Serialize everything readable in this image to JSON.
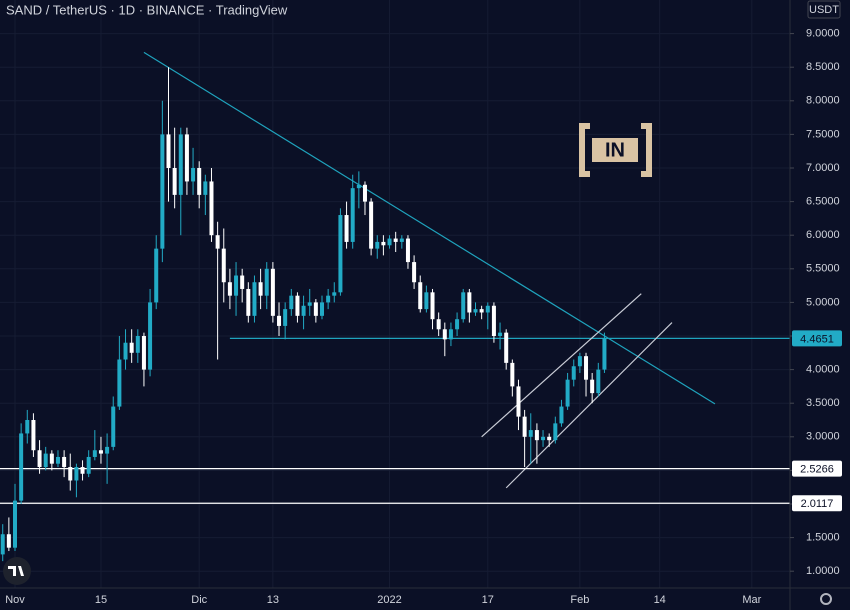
{
  "chart_data": {
    "type": "candlestick",
    "title": "SAND / TetherUS · 1D · BINANCE · TradingView",
    "currency": "USDT",
    "watermark": "IN",
    "up_color": "#22abc6",
    "down_color": "#ffffff",
    "x": [
      "10-30",
      "10-31",
      "11-01",
      "11-02",
      "11-03",
      "11-04",
      "11-05",
      "11-06",
      "11-07",
      "11-08",
      "11-09",
      "11-10",
      "11-11",
      "11-12",
      "11-13",
      "11-14",
      "11-15",
      "11-16",
      "11-17",
      "11-18",
      "11-19",
      "11-20",
      "11-21",
      "11-22",
      "11-23",
      "11-24",
      "11-25",
      "11-26",
      "11-27",
      "11-28",
      "11-29",
      "11-30",
      "12-01",
      "12-02",
      "12-03",
      "12-04",
      "12-05",
      "12-06",
      "12-07",
      "12-08",
      "12-09",
      "12-10",
      "12-11",
      "12-12",
      "12-13",
      "12-14",
      "12-15",
      "12-16",
      "12-17",
      "12-18",
      "12-19",
      "12-20",
      "12-21",
      "12-22",
      "12-23",
      "12-24",
      "12-25",
      "12-26",
      "12-27",
      "12-28",
      "12-29",
      "12-30",
      "12-31",
      "01-01",
      "01-02",
      "01-03",
      "01-04",
      "01-05",
      "01-06",
      "01-07",
      "01-08",
      "01-09",
      "01-10",
      "01-11",
      "01-12",
      "01-13",
      "01-14",
      "01-15",
      "01-16",
      "01-17",
      "01-18",
      "01-19",
      "01-20",
      "01-21",
      "01-22",
      "01-23",
      "01-24",
      "01-25",
      "01-26",
      "01-27",
      "01-28",
      "01-29",
      "01-30",
      "01-31",
      "02-01",
      "02-02",
      "02-03",
      "02-04",
      "02-05"
    ],
    "open": [
      1.25,
      1.55,
      1.35,
      2.05,
      3.05,
      3.25,
      2.8,
      2.55,
      2.75,
      2.6,
      2.7,
      2.55,
      2.35,
      2.55,
      2.45,
      2.7,
      2.8,
      2.75,
      2.85,
      3.45,
      4.15,
      4.4,
      4.25,
      4.5,
      4.0,
      5.0,
      5.8,
      7.5,
      7.0,
      6.6,
      7.5,
      6.8,
      7.0,
      6.6,
      6.8,
      6.0,
      5.8,
      5.3,
      5.1,
      5.4,
      5.2,
      4.8,
      5.3,
      5.1,
      5.5,
      4.8,
      4.65,
      4.9,
      5.1,
      4.8,
      4.95,
      5.0,
      4.8,
      5.0,
      5.1,
      5.15,
      6.3,
      5.9,
      6.7,
      6.75,
      6.5,
      5.8,
      5.9,
      5.85,
      5.95,
      5.9,
      5.95,
      5.6,
      5.3,
      4.9,
      5.15,
      4.75,
      4.6,
      4.45,
      4.6,
      4.75,
      5.15,
      4.85,
      4.9,
      4.85,
      4.95,
      4.5,
      4.55,
      4.1,
      3.75,
      3.3,
      3.0,
      3.1,
      2.95,
      3.0,
      2.95,
      3.2,
      3.45,
      3.85,
      4.05,
      4.2,
      3.85,
      3.65,
      4.0
    ],
    "high": [
      1.7,
      1.8,
      2.3,
      3.2,
      3.4,
      3.35,
      2.95,
      2.85,
      2.8,
      2.8,
      2.8,
      2.75,
      2.6,
      2.65,
      2.8,
      3.1,
      3.0,
      3.05,
      3.6,
      4.5,
      4.6,
      4.6,
      4.6,
      4.55,
      5.2,
      6.0,
      8.0,
      8.5,
      7.6,
      7.6,
      7.6,
      7.3,
      7.1,
      6.9,
      7.0,
      6.2,
      6.1,
      5.5,
      5.6,
      5.5,
      5.3,
      5.4,
      5.5,
      5.6,
      5.6,
      5.0,
      5.0,
      5.2,
      5.15,
      5.1,
      5.2,
      5.05,
      5.1,
      5.2,
      5.3,
      6.4,
      6.5,
      6.9,
      6.95,
      6.8,
      6.55,
      6.0,
      6.0,
      6.0,
      6.05,
      6.0,
      6.0,
      5.7,
      5.4,
      5.25,
      5.2,
      4.85,
      4.7,
      4.7,
      4.85,
      5.2,
      5.2,
      5.0,
      4.95,
      5.0,
      5.0,
      4.7,
      4.6,
      4.15,
      3.85,
      3.4,
      3.35,
      3.2,
      3.1,
      3.05,
      3.3,
      3.55,
      3.95,
      4.15,
      4.25,
      4.25,
      3.95,
      4.1,
      4.55
    ],
    "low": [
      1.15,
      1.3,
      1.3,
      2.0,
      2.9,
      2.7,
      2.45,
      2.5,
      2.5,
      2.55,
      2.4,
      2.2,
      2.1,
      2.35,
      2.4,
      2.65,
      2.6,
      2.3,
      2.8,
      3.4,
      4.0,
      4.1,
      4.1,
      3.75,
      3.9,
      4.9,
      5.6,
      6.5,
      6.4,
      6.0,
      6.6,
      6.6,
      6.4,
      6.3,
      5.9,
      4.15,
      5.0,
      4.9,
      4.8,
      5.0,
      4.7,
      4.7,
      4.9,
      4.9,
      4.7,
      4.5,
      4.45,
      4.8,
      4.7,
      4.6,
      4.8,
      4.7,
      4.75,
      4.9,
      5.0,
      5.1,
      5.8,
      5.8,
      6.4,
      6.3,
      5.7,
      5.65,
      5.7,
      5.8,
      5.75,
      5.8,
      5.5,
      5.2,
      4.85,
      4.85,
      4.6,
      4.5,
      4.2,
      4.35,
      4.5,
      4.7,
      4.7,
      4.8,
      4.75,
      4.6,
      4.4,
      4.3,
      4.0,
      3.6,
      3.1,
      2.55,
      2.6,
      2.6,
      2.85,
      2.85,
      2.9,
      3.15,
      3.4,
      3.75,
      3.95,
      3.6,
      3.5,
      3.6,
      3.95
    ],
    "close": [
      1.55,
      1.35,
      2.05,
      3.05,
      3.25,
      2.8,
      2.55,
      2.75,
      2.6,
      2.7,
      2.55,
      2.35,
      2.55,
      2.45,
      2.7,
      2.8,
      2.75,
      2.85,
      3.45,
      4.15,
      4.4,
      4.25,
      4.5,
      4.0,
      5.0,
      5.8,
      7.5,
      7.0,
      6.6,
      7.5,
      6.8,
      7.0,
      6.6,
      6.8,
      6.0,
      5.8,
      5.3,
      5.1,
      5.4,
      5.2,
      4.8,
      5.3,
      5.1,
      5.5,
      4.8,
      4.65,
      4.9,
      5.1,
      4.8,
      4.95,
      5.0,
      4.8,
      5.0,
      5.1,
      5.15,
      6.3,
      5.9,
      6.7,
      6.75,
      6.5,
      5.8,
      5.9,
      5.85,
      5.95,
      5.9,
      5.95,
      5.6,
      5.3,
      4.9,
      5.15,
      4.75,
      4.6,
      4.45,
      4.6,
      4.75,
      5.15,
      4.85,
      4.9,
      4.85,
      4.95,
      4.5,
      4.55,
      4.1,
      3.75,
      3.3,
      3.0,
      3.1,
      2.95,
      3.0,
      2.95,
      3.2,
      3.45,
      3.85,
      4.05,
      4.2,
      3.85,
      3.65,
      4.0,
      4.4651
    ],
    "ylim": [
      0.75,
      9.5
    ],
    "yticks": [
      {
        "value": 1,
        "label": "1.0000"
      },
      {
        "value": 1.5,
        "label": "1.5000"
      },
      {
        "value": 2,
        "label": "2.0000"
      },
      {
        "value": 2.5,
        "label": "2.5000"
      },
      {
        "value": 3,
        "label": "3.0000"
      },
      {
        "value": 3.5,
        "label": "3.5000"
      },
      {
        "value": 4,
        "label": "4.0000"
      },
      {
        "value": 4.5,
        "label": "4.5000"
      },
      {
        "value": 5,
        "label": "5.0000"
      },
      {
        "value": 5.5,
        "label": "5.5000"
      },
      {
        "value": 6,
        "label": "6.0000"
      },
      {
        "value": 6.5,
        "label": "6.5000"
      },
      {
        "value": 7,
        "label": "7.0000"
      },
      {
        "value": 7.5,
        "label": "7.5000"
      },
      {
        "value": 8,
        "label": "8.0000"
      },
      {
        "value": 8.5,
        "label": "8.5000"
      },
      {
        "value": 9,
        "label": "9.0000"
      }
    ],
    "xticks": [
      {
        "value": "11-01",
        "label": "Nov"
      },
      {
        "value": "11-15",
        "label": "15"
      },
      {
        "value": "12-01",
        "label": "Dic"
      },
      {
        "value": "12-13",
        "label": "13"
      },
      {
        "value": "01-01",
        "label": "2022"
      },
      {
        "value": "01-17",
        "label": "17"
      },
      {
        "value": "02-01",
        "label": "Feb"
      },
      {
        "value": "02-14",
        "label": "14"
      },
      {
        "value": "03-01",
        "label": "Mar"
      }
    ],
    "grid": true,
    "price_lines": [
      {
        "value": 2.5266,
        "color": "#ffffff"
      },
      {
        "value": 2.0117,
        "color": "#ffffff"
      }
    ],
    "trendlines": [
      {
        "points": [
          [
            "11-22",
            8.72
          ],
          [
            "02-23",
            3.49
          ]
        ],
        "color": "#1fa3bd"
      },
      {
        "points": [
          [
            "12-06",
            4.4651
          ],
          [
            "03-22",
            4.4651
          ]
        ],
        "color": "#1fa3bd"
      },
      {
        "points": [
          [
            "01-16",
            3.0
          ],
          [
            "02-11",
            5.13
          ]
        ],
        "color": "#c9ccd6"
      },
      {
        "points": [
          [
            "01-20",
            2.24
          ],
          [
            "02-16",
            4.7
          ]
        ],
        "color": "#c9ccd6"
      }
    ]
  }
}
